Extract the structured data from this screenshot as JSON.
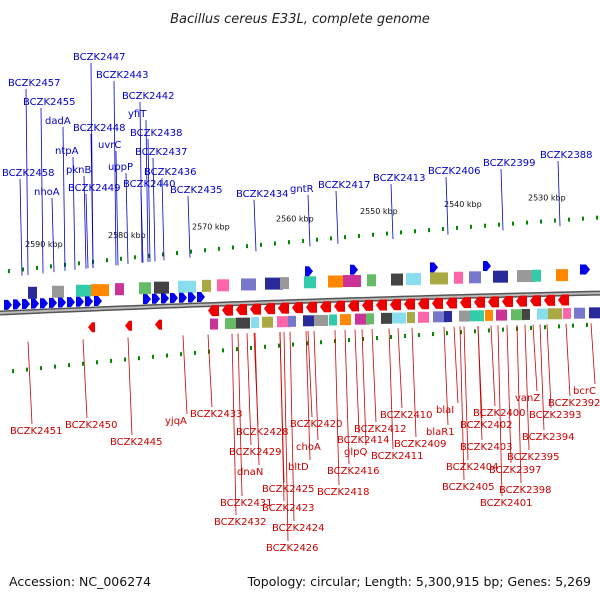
{
  "title": "Bacillus cereus E33L, complete genome",
  "footer": {
    "accession": "Accession: NC_006274",
    "topology": "Topology: circular; Length: 5,300,915 bp; Genes: 5,269"
  },
  "colors": {
    "forward": "#0000ee",
    "reverse": "#ee0000",
    "forward_label": "#0000cc",
    "reverse_label": "#cc0000",
    "ticks": "#008800",
    "backbone": "#888888"
  },
  "scale_ticks": [
    "2590 kbp",
    "2580 kbp",
    "2570 kbp",
    "2560 kbp",
    "2550 kbp",
    "2540 kbp",
    "2530 kbp"
  ],
  "forward_genes": [
    "BCZK2458",
    "nhoA",
    "BCZK2457",
    "BCZK2455",
    "dadA",
    "ntpA",
    "pknB",
    "BCZK2449",
    "BCZK2448",
    "BCZK2447",
    "uvrC",
    "uppP",
    "BCZK2443",
    "BCZK2442",
    "yfiT",
    "BCZK2440",
    "BCZK2438",
    "BCZK2437",
    "BCZK2436",
    "BCZK2435",
    "BCZK2434",
    "gntR",
    "BCZK2417",
    "BCZK2413",
    "BCZK2406",
    "BCZK2399",
    "BCZK2388"
  ],
  "reverse_genes": [
    "BCZK2451",
    "BCZK2450",
    "BCZK2445",
    "yjqA",
    "BCZK2433",
    "BCZK2431",
    "BCZK2432",
    "dnaN",
    "BCZK2429",
    "BCZK2428",
    "bltD",
    "BCZK2425",
    "BCZK2423",
    "BCZK2424",
    "BCZK2426",
    "choA",
    "BCZK2420",
    "BCZK2418",
    "BCZK2416",
    "glpQ",
    "BCZK2414",
    "BCZK2412",
    "BCZK2411",
    "BCZK2410",
    "BCZK2409",
    "blaR1",
    "blaI",
    "BCZK2405",
    "BCZK2404",
    "BCZK2403",
    "BCZK2402",
    "BCZK2400",
    "BCZK2401",
    "BCZK2398",
    "BCZK2397",
    "BCZK2395",
    "BCZK2394",
    "vanZ",
    "BCZK2393",
    "bcrC",
    "BCZK2392"
  ]
}
